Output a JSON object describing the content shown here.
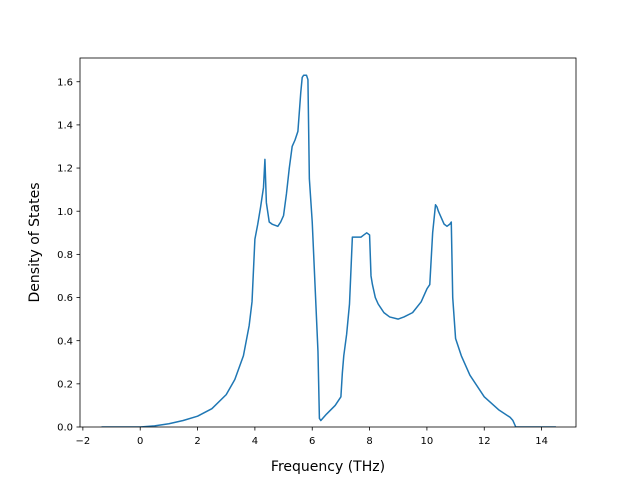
{
  "chart_data": {
    "type": "line",
    "title": "",
    "xlabel": "Frequency (THz)",
    "ylabel": "Density of States",
    "xlim": [
      -2.1,
      15.2
    ],
    "ylim": [
      0.0,
      1.71
    ],
    "xticks": [
      -2,
      0,
      2,
      4,
      6,
      8,
      10,
      12,
      14
    ],
    "yticks": [
      0.0,
      0.2,
      0.4,
      0.6,
      0.8,
      1.0,
      1.2,
      1.4,
      1.6
    ],
    "xtick_labels": [
      "−2",
      "0",
      "2",
      "4",
      "6",
      "8",
      "10",
      "12",
      "14"
    ],
    "ytick_labels": [
      "0.0",
      "0.2",
      "0.4",
      "0.6",
      "0.8",
      "1.0",
      "1.2",
      "1.4",
      "1.6"
    ],
    "grid": false,
    "line_color": "#1f77b4",
    "series": [
      {
        "x": [
          -1.35,
          -1.0,
          0.0,
          0.5,
          1.0,
          1.5,
          2.0,
          2.5,
          3.0,
          3.3,
          3.6,
          3.8,
          3.9,
          4.0,
          4.1,
          4.2,
          4.3,
          4.35,
          4.4,
          4.5,
          4.6,
          4.8,
          4.9,
          5.0,
          5.1,
          5.2,
          5.3,
          5.4,
          5.5,
          5.6,
          5.65,
          5.7,
          5.8,
          5.85,
          5.9,
          6.0,
          6.1,
          6.2,
          6.25,
          6.3,
          6.5,
          6.8,
          7.0,
          7.05,
          7.1,
          7.2,
          7.3,
          7.4,
          7.5,
          7.6,
          7.7,
          7.8,
          7.9,
          8.0,
          8.05,
          8.1,
          8.2,
          8.3,
          8.5,
          8.7,
          9.0,
          9.2,
          9.5,
          9.8,
          10.0,
          10.1,
          10.2,
          10.3,
          10.35,
          10.4,
          10.5,
          10.6,
          10.7,
          10.8,
          10.85,
          10.9,
          11.0,
          11.2,
          11.5,
          12.0,
          12.5,
          12.9,
          13.0,
          13.1,
          13.2,
          14.5
        ],
        "y": [
          0.0,
          0.0,
          0.0,
          0.005,
          0.015,
          0.03,
          0.05,
          0.085,
          0.15,
          0.22,
          0.33,
          0.47,
          0.58,
          0.87,
          0.94,
          1.02,
          1.11,
          1.24,
          1.04,
          0.95,
          0.94,
          0.93,
          0.95,
          0.98,
          1.08,
          1.2,
          1.3,
          1.33,
          1.37,
          1.55,
          1.62,
          1.63,
          1.63,
          1.61,
          1.15,
          0.95,
          0.65,
          0.35,
          0.04,
          0.03,
          0.06,
          0.1,
          0.14,
          0.25,
          0.33,
          0.43,
          0.57,
          0.88,
          0.88,
          0.88,
          0.88,
          0.89,
          0.9,
          0.89,
          0.7,
          0.66,
          0.6,
          0.57,
          0.53,
          0.51,
          0.5,
          0.51,
          0.53,
          0.58,
          0.64,
          0.66,
          0.9,
          1.03,
          1.02,
          1.0,
          0.97,
          0.94,
          0.93,
          0.94,
          0.95,
          0.6,
          0.41,
          0.33,
          0.24,
          0.14,
          0.08,
          0.045,
          0.03,
          0.0,
          0.0,
          0.0
        ]
      }
    ]
  }
}
